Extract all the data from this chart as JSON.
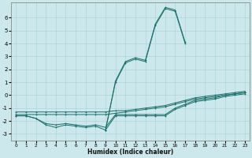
{
  "xlabel": "Humidex (Indice chaleur)",
  "background_color": "#cde8ec",
  "grid_color": "#aed4d8",
  "line_color": "#1a6e68",
  "xlim": [
    -0.5,
    23.5
  ],
  "ylim": [
    -3.5,
    7.2
  ],
  "xticks": [
    0,
    1,
    2,
    3,
    4,
    5,
    6,
    7,
    8,
    9,
    10,
    11,
    12,
    13,
    14,
    15,
    16,
    17,
    18,
    19,
    20,
    21,
    22,
    23
  ],
  "yticks": [
    -3,
    -2,
    -1,
    0,
    1,
    2,
    3,
    4,
    5,
    6
  ],
  "line1_x": [
    0,
    1,
    2,
    3,
    4,
    5,
    6,
    7,
    8,
    9,
    10,
    11,
    12,
    13,
    14,
    15,
    16,
    17,
    18,
    19,
    20,
    21,
    22,
    23
  ],
  "line1_y": [
    -1.3,
    -1.3,
    -1.3,
    -1.3,
    -1.3,
    -1.3,
    -1.3,
    -1.3,
    -1.3,
    -1.3,
    -1.2,
    -1.2,
    -1.1,
    -1.0,
    -0.9,
    -0.8,
    -0.6,
    -0.4,
    -0.2,
    -0.1,
    0.0,
    0.1,
    0.2,
    0.3
  ],
  "line2_x": [
    0,
    1,
    2,
    3,
    4,
    5,
    6,
    7,
    8,
    9,
    10,
    11,
    12,
    13,
    14,
    15,
    16,
    17,
    18,
    19,
    20,
    21,
    22,
    23
  ],
  "line2_y": [
    -1.5,
    -1.5,
    -1.5,
    -1.5,
    -1.5,
    -1.5,
    -1.5,
    -1.5,
    -1.5,
    -1.5,
    -1.4,
    -1.3,
    -1.2,
    -1.1,
    -1.0,
    -0.9,
    -0.7,
    -0.5,
    -0.3,
    -0.2,
    -0.1,
    0.0,
    0.1,
    0.2
  ],
  "line3_x": [
    0,
    1,
    2,
    3,
    4,
    5,
    6,
    7,
    8,
    9,
    10,
    11,
    12,
    13,
    14,
    15,
    16,
    17,
    18,
    19,
    20,
    21,
    22,
    23
  ],
  "line3_y": [
    -1.6,
    -1.6,
    -1.8,
    -2.2,
    -2.3,
    -2.2,
    -2.3,
    -2.4,
    -2.3,
    -2.5,
    -1.5,
    -1.5,
    -1.5,
    -1.5,
    -1.5,
    -1.5,
    -1.0,
    -0.7,
    -0.4,
    -0.3,
    -0.2,
    0.0,
    0.1,
    0.2
  ],
  "line4_x": [
    0,
    1,
    2,
    3,
    4,
    5,
    6,
    7,
    8,
    9,
    10,
    11,
    12,
    13,
    14,
    15,
    16,
    17,
    18,
    19,
    20,
    21,
    22,
    23
  ],
  "line4_y": [
    -1.6,
    -1.6,
    -1.8,
    -2.3,
    -2.5,
    -2.3,
    -2.4,
    -2.5,
    -2.4,
    -2.7,
    -1.6,
    -1.6,
    -1.6,
    -1.6,
    -1.6,
    -1.6,
    -1.1,
    -0.8,
    -0.5,
    -0.4,
    -0.3,
    -0.1,
    0.0,
    0.1
  ],
  "line5_x": [
    9,
    10,
    11,
    12,
    13,
    14,
    15,
    16,
    17
  ],
  "line5_y": [
    -2.7,
    1.0,
    2.5,
    2.8,
    2.6,
    5.4,
    6.7,
    6.5,
    4.0
  ],
  "line6_x": [
    9,
    10,
    11,
    12,
    13,
    14,
    15,
    16,
    17
  ],
  "line6_y": [
    -2.7,
    1.1,
    2.6,
    2.9,
    2.7,
    5.5,
    6.8,
    6.6,
    4.1
  ]
}
